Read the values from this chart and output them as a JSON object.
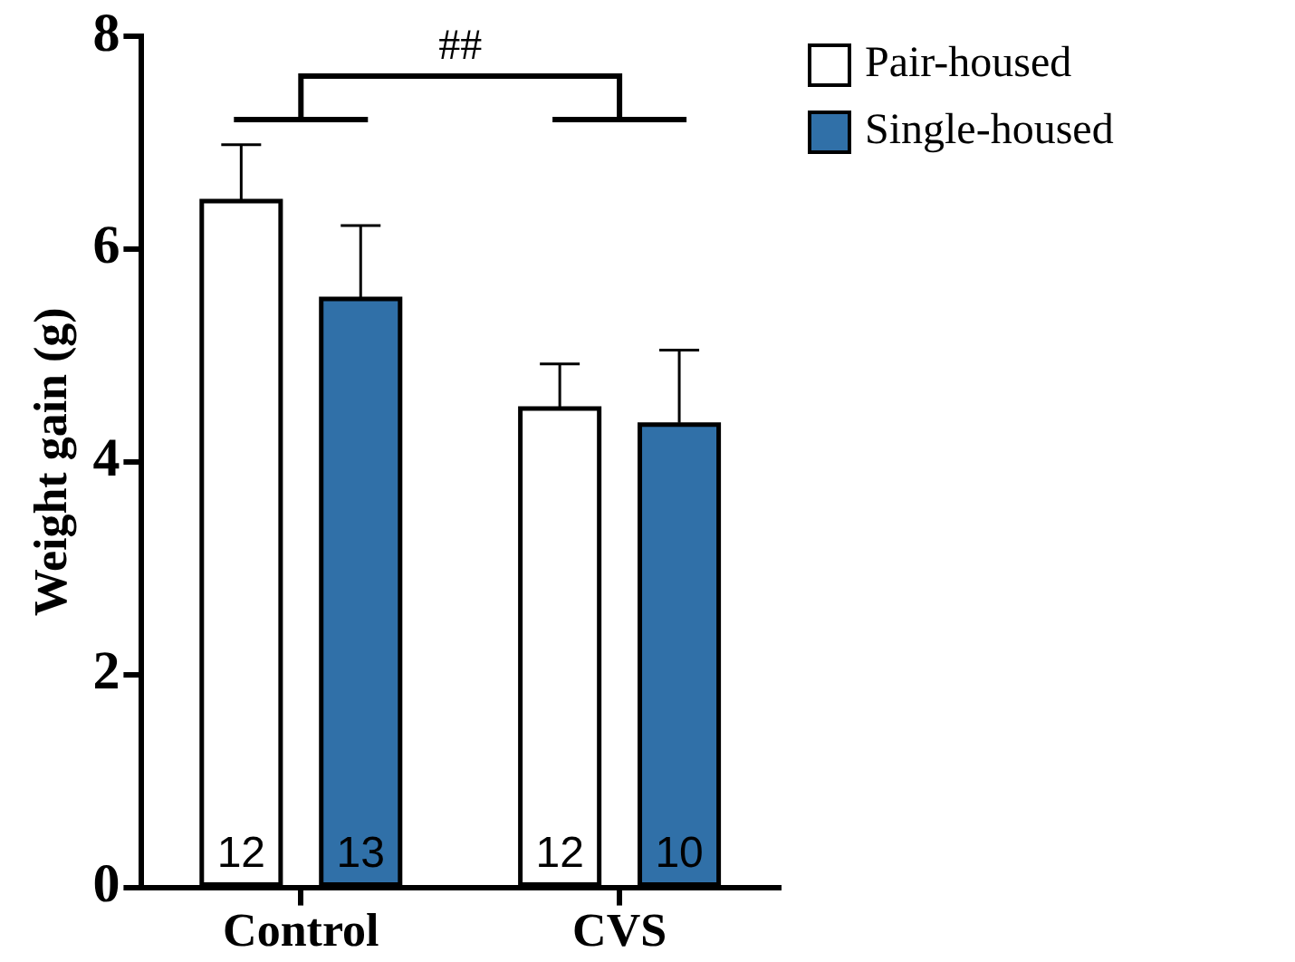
{
  "chart_data": {
    "type": "bar",
    "ylabel": "Weight gain (g)",
    "categories": [
      "Control",
      "CVS"
    ],
    "series": [
      {
        "name": "Pair-housed",
        "color": "#ffffff",
        "values": [
          6.45,
          4.5
        ],
        "errors": [
          0.53,
          0.42
        ]
      },
      {
        "name": "Single-housed",
        "color": "#3070a8",
        "values": [
          5.53,
          4.35
        ],
        "errors": [
          0.69,
          0.7
        ]
      }
    ],
    "ylim": [
      0,
      8
    ],
    "yticks": [
      0,
      2,
      4,
      6,
      8
    ],
    "grid": false,
    "legend": "top right",
    "annotations": [
      "##",
      "12",
      "13",
      "12",
      "10"
    ]
  }
}
